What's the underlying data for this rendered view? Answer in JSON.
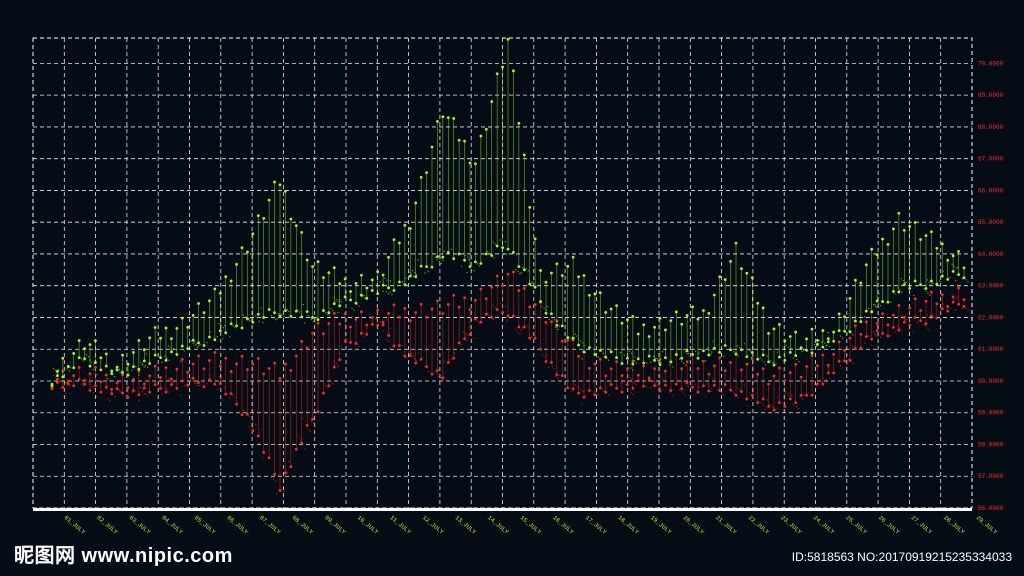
{
  "chart_data": {
    "type": "line",
    "title": "",
    "xlabel": "",
    "ylabel": "",
    "grid": true,
    "ylim": [
      56.0,
      70.8
    ],
    "y_ticks": [
      "70.0000",
      "69.0000",
      "68.0000",
      "67.0000",
      "66.0000",
      "65.0000",
      "64.0000",
      "63.0000",
      "62.0000",
      "61.0000",
      "60.0000",
      "59.0000",
      "58.0000",
      "57.0000",
      "56.0000"
    ],
    "categories": [
      "01_JULY",
      "02_JULY",
      "03_JULY",
      "04_JULY",
      "05_JULY",
      "06_JULY",
      "07_JULY",
      "08_JULY",
      "09_JULY",
      "10_JULY",
      "11_JULY",
      "12_JULY",
      "13_JULY",
      "14_JULY",
      "15_JULY",
      "16_JULY",
      "17_JULY",
      "18_JULY",
      "19_JULY",
      "20_JULY",
      "21_JULY",
      "22_JULY",
      "23_JULY",
      "24_JULY",
      "25_JULY",
      "26_JULY",
      "27_JULY",
      "28_JULY",
      "29_JULY"
    ],
    "series": [
      {
        "color": "#9aff22",
        "high": [
          60.2,
          61.2,
          60.5,
          61.3,
          61.8,
          62.6,
          64.3,
          66.3,
          63.6,
          63.1,
          63.2,
          65.1,
          68.5,
          66.9,
          70.7,
          63.3,
          63.6,
          62.4,
          61.6,
          61.9,
          62.1,
          64.1,
          61.8,
          61.2,
          61.6,
          63.6,
          65.1,
          64.4,
          63.8
        ],
        "low": [
          60.0,
          60.7,
          60.2,
          60.6,
          61.0,
          61.4,
          61.9,
          62.2,
          62.0,
          62.5,
          62.8,
          63.2,
          64.0,
          63.7,
          64.3,
          62.5,
          61.2,
          60.8,
          60.6,
          60.7,
          60.9,
          61.0,
          60.6,
          60.9,
          61.3,
          62.1,
          62.9,
          63.1,
          63.4
        ]
      },
      {
        "color": "#ff2a1a",
        "high": [
          60.1,
          60.2,
          60.0,
          60.1,
          60.5,
          60.6,
          60.6,
          60.2,
          61.5,
          62.0,
          62.0,
          62.2,
          62.3,
          62.6,
          63.3,
          62.3,
          61.0,
          60.4,
          60.3,
          60.6,
          60.5,
          60.6,
          60.2,
          60.3,
          60.9,
          61.8,
          62.2,
          62.5,
          62.8
        ],
        "low": [
          59.9,
          59.9,
          59.6,
          59.7,
          59.9,
          60.0,
          58.9,
          56.7,
          58.8,
          61.1,
          61.8,
          60.7,
          60.2,
          61.9,
          62.2,
          61.0,
          59.6,
          59.7,
          59.9,
          59.8,
          59.8,
          59.7,
          59.2,
          59.4,
          60.3,
          61.3,
          61.7,
          62.0,
          62.5
        ]
      }
    ]
  },
  "watermark": {
    "left": "昵图网 www.nipic.com",
    "right": "ID:5818563 NO:20170919215235334033"
  }
}
